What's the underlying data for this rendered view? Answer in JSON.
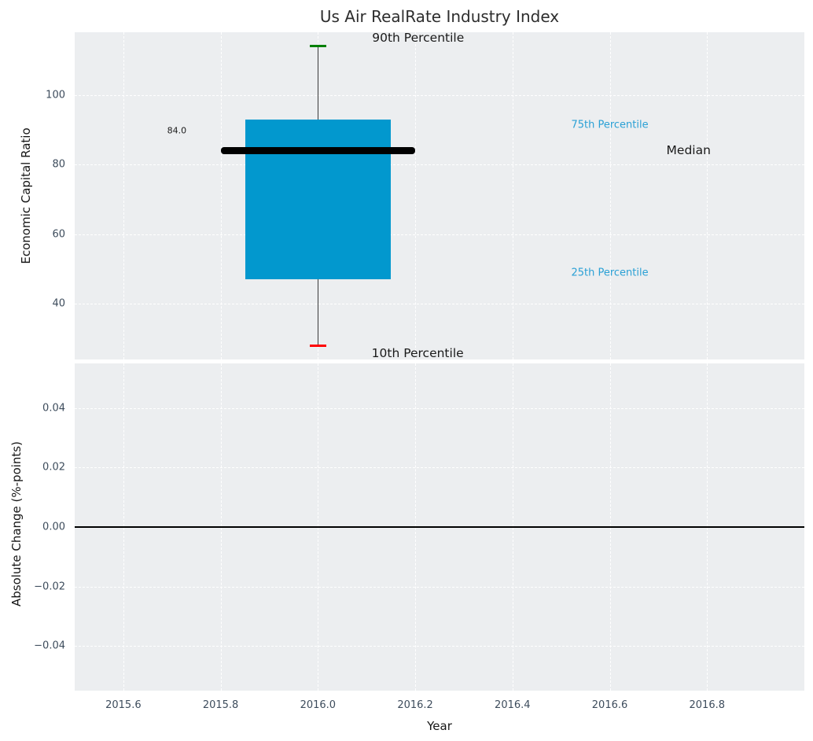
{
  "figure_title": "Us Air RealRate Industry Index",
  "colors": {
    "panel_bg": "#eceef0",
    "grid": "#ffffff",
    "box_fill": "#0298ce",
    "median_line": "#000000",
    "whisker": "#3a3a3a",
    "cap_90th": "#008000",
    "cap_10th": "#ff0000",
    "annotation_dark": "#1a1a1a",
    "annotation_blue": "#2aa0d5",
    "tick_label": "#3d4c5c",
    "zero_line": "#000000"
  },
  "chart_data": [
    {
      "type": "box",
      "title": "Us Air RealRate Industry Index",
      "ylabel": "Economic Capital Ratio",
      "xlim": [
        2015.5,
        2017.0
      ],
      "ylim": [
        24,
        118
      ],
      "grid": true,
      "legend_position": "none",
      "x_center": 2016.0,
      "box_half_width": 0.15,
      "median_half_width": 0.2,
      "cap_half_width": 0.0175,
      "values": {
        "p10": 28,
        "p25": 47,
        "median": 84,
        "p75": 93,
        "p90": 114
      },
      "median_value_label": "84.0",
      "yticks": [
        {
          "v": 100,
          "label": "100"
        },
        {
          "v": 80,
          "label": "80"
        },
        {
          "v": 60,
          "label": "60"
        },
        {
          "v": 40,
          "label": "40"
        }
      ],
      "annotations": [
        {
          "text": "90th Percentile",
          "style": "dark",
          "x": 2016.206,
          "y": 116.4
        },
        {
          "text": "75th Percentile",
          "style": "blue",
          "x": 2016.6,
          "y": 91.3
        },
        {
          "text": "Median",
          "style": "dark",
          "x": 2016.762,
          "y": 84.1
        },
        {
          "text": "25th Percentile",
          "style": "blue",
          "x": 2016.6,
          "y": 48.9
        },
        {
          "text": "10th Percentile",
          "style": "dark",
          "x": 2016.205,
          "y": 25.8
        },
        {
          "text": "84.0",
          "style": "tiny",
          "x": 2015.71,
          "y": 89.8
        }
      ]
    },
    {
      "type": "line",
      "ylabel": "Absolute Change (%-points)",
      "xlabel": "Year",
      "xlim": [
        2015.5,
        2017.0
      ],
      "ylim": [
        -0.055,
        0.055
      ],
      "grid": true,
      "series": [],
      "zero_line_y": 0.0,
      "yticks": [
        {
          "v": 0.04,
          "label": "0.04"
        },
        {
          "v": 0.02,
          "label": "0.02"
        },
        {
          "v": 0.0,
          "label": "0.00"
        },
        {
          "v": -0.02,
          "label": "−0.02"
        },
        {
          "v": -0.04,
          "label": "−0.04"
        }
      ],
      "xticks": [
        {
          "v": 2015.6,
          "label": "2015.6"
        },
        {
          "v": 2015.8,
          "label": "2015.8"
        },
        {
          "v": 2016.0,
          "label": "2016.0"
        },
        {
          "v": 2016.2,
          "label": "2016.2"
        },
        {
          "v": 2016.4,
          "label": "2016.4"
        },
        {
          "v": 2016.6,
          "label": "2016.6"
        },
        {
          "v": 2016.8,
          "label": "2016.8"
        }
      ]
    }
  ]
}
